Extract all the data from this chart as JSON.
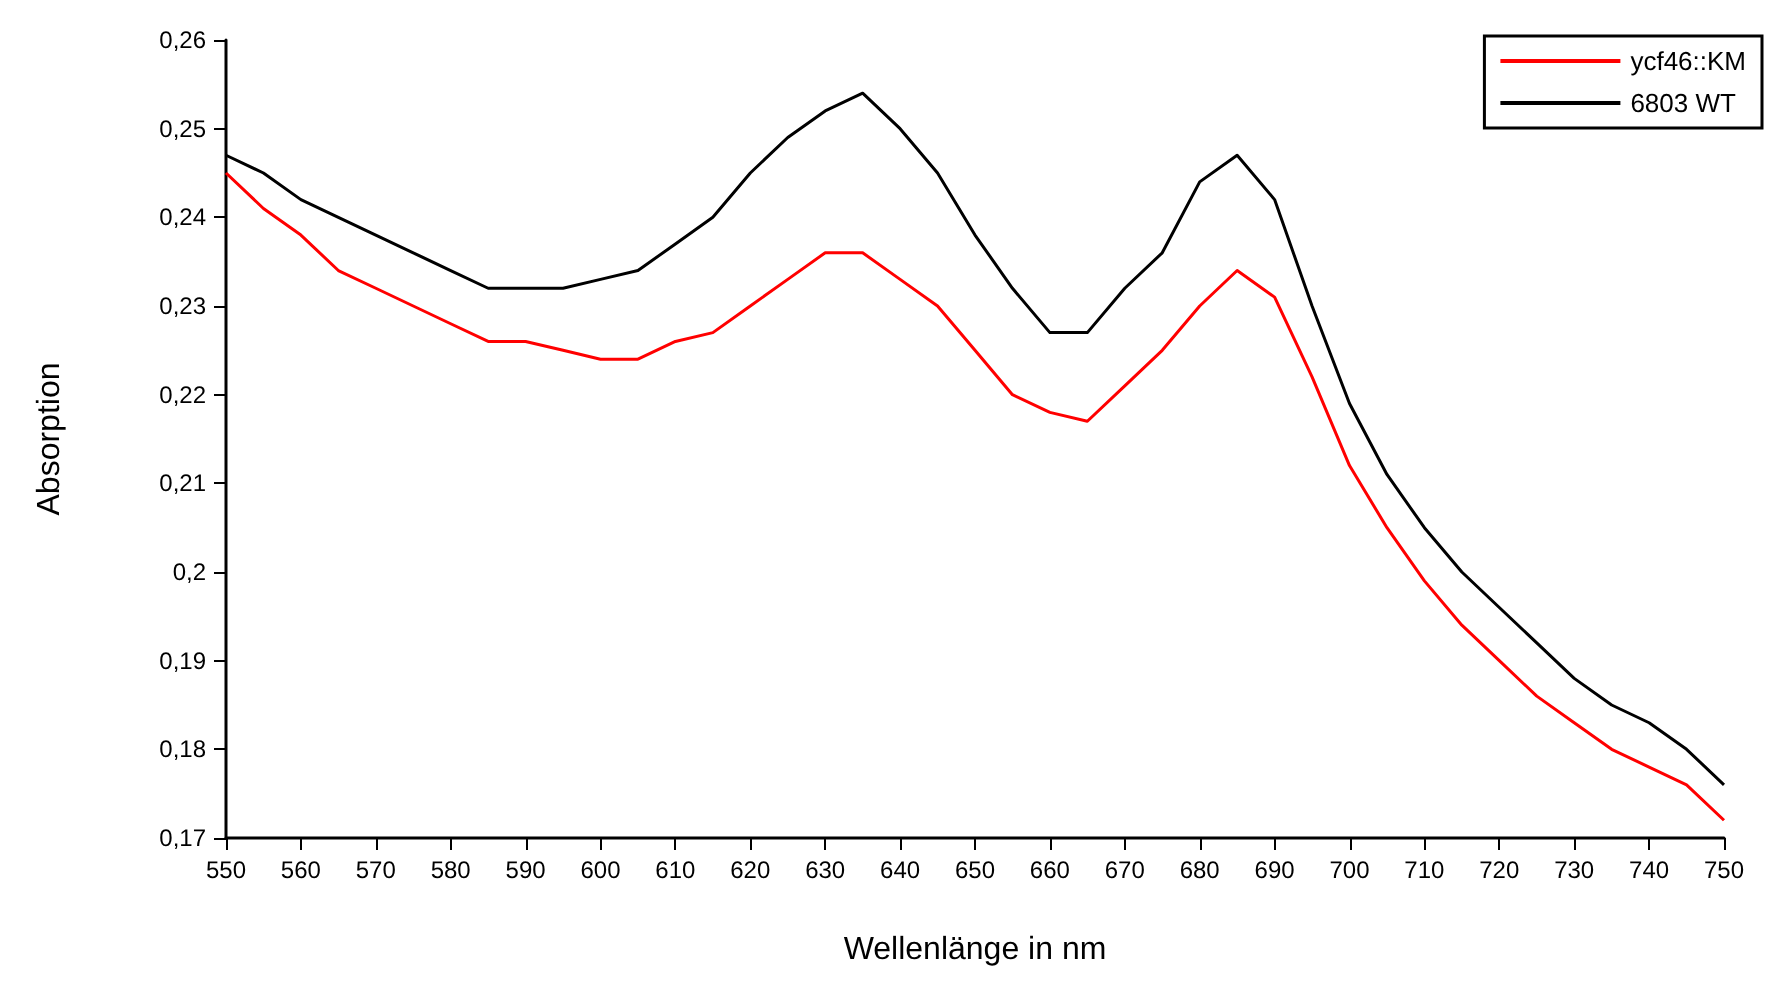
{
  "chart_data": {
    "type": "line",
    "xlabel": "Wellenlänge in nm",
    "ylabel": "Absorption",
    "x": [
      550,
      555,
      560,
      565,
      570,
      575,
      580,
      585,
      590,
      595,
      600,
      605,
      610,
      615,
      620,
      625,
      630,
      635,
      640,
      645,
      650,
      655,
      660,
      665,
      670,
      675,
      680,
      685,
      690,
      695,
      700,
      705,
      710,
      715,
      720,
      725,
      730,
      735,
      740,
      745,
      750
    ],
    "series": [
      {
        "name": "ycf46::KM",
        "color": "#ff0000",
        "values": [
          0.245,
          0.241,
          0.238,
          0.234,
          0.232,
          0.23,
          0.228,
          0.226,
          0.226,
          0.225,
          0.224,
          0.224,
          0.226,
          0.227,
          0.23,
          0.233,
          0.236,
          0.236,
          0.233,
          0.23,
          0.225,
          0.22,
          0.218,
          0.217,
          0.221,
          0.225,
          0.23,
          0.234,
          0.231,
          0.222,
          0.212,
          0.205,
          0.199,
          0.194,
          0.19,
          0.186,
          0.183,
          0.18,
          0.178,
          0.176,
          0.172
        ]
      },
      {
        "name": "6803 WT",
        "color": "#000000",
        "values": [
          0.247,
          0.245,
          0.242,
          0.24,
          0.238,
          0.236,
          0.234,
          0.232,
          0.232,
          0.232,
          0.233,
          0.234,
          0.237,
          0.24,
          0.245,
          0.249,
          0.252,
          0.254,
          0.25,
          0.245,
          0.238,
          0.232,
          0.227,
          0.227,
          0.232,
          0.236,
          0.244,
          0.247,
          0.242,
          0.23,
          0.219,
          0.211,
          0.205,
          0.2,
          0.196,
          0.192,
          0.188,
          0.185,
          0.183,
          0.18,
          0.176
        ]
      }
    ],
    "xlim": [
      550,
      750
    ],
    "xticks": [
      550,
      560,
      570,
      580,
      590,
      600,
      610,
      620,
      630,
      640,
      650,
      660,
      670,
      680,
      690,
      700,
      710,
      720,
      730,
      740,
      750
    ],
    "ylim": [
      0.17,
      0.26
    ],
    "yticks": [
      {
        "value": 0.17,
        "label": "0,17"
      },
      {
        "value": 0.18,
        "label": "0,18"
      },
      {
        "value": 0.19,
        "label": "0,19"
      },
      {
        "value": 0.2,
        "label": "0,2"
      },
      {
        "value": 0.21,
        "label": "0,21"
      },
      {
        "value": 0.22,
        "label": "0,22"
      },
      {
        "value": 0.23,
        "label": "0,23"
      },
      {
        "value": 0.24,
        "label": "0,24"
      },
      {
        "value": 0.25,
        "label": "0,25"
      },
      {
        "value": 0.26,
        "label": "0,26"
      }
    ],
    "grid": false,
    "legend": "top right",
    "marker": "none",
    "line_style": "solid"
  }
}
